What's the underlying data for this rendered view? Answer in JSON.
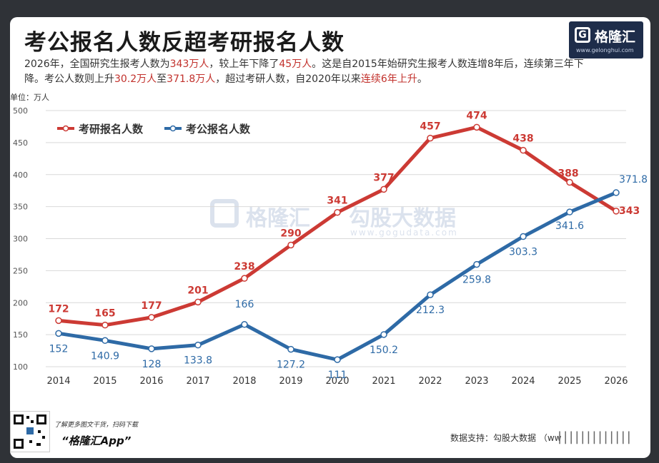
{
  "header": {
    "title": "考公报名人数反超考研报名人数",
    "subtitle_parts": [
      {
        "text": "2026年，全国研究生报考人数为",
        "hl": false
      },
      {
        "text": "343万人",
        "hl": true
      },
      {
        "text": "，较上年下降了",
        "hl": false
      },
      {
        "text": "45万人",
        "hl": true
      },
      {
        "text": "。这是自2015年始研究生报考人数连增8年后，连续第三年下降。考公人数则上升",
        "hl": false
      },
      {
        "text": "30.2万人",
        "hl": true
      },
      {
        "text": "至",
        "hl": false
      },
      {
        "text": "371.8万人",
        "hl": true
      },
      {
        "text": "，超过考研人数，自2020年以来",
        "hl": false
      },
      {
        "text": "连续6年上升",
        "hl": true
      },
      {
        "text": "。",
        "hl": false
      }
    ]
  },
  "logo": {
    "name": "格隆汇",
    "mark": "G",
    "url": "www.gelonghui.com"
  },
  "watermark": {
    "brand": "格隆汇",
    "partner": "勾股大数据",
    "url": "www.gogudata.com"
  },
  "footer": {
    "promo": "了解更多图文干货，扫码下载",
    "app": "“格隆汇App”",
    "source": "数据支持：勾股大数据 （ww",
    "overlay": "|||||||||||||"
  },
  "colors": {
    "kaoyan": "#cc3a34",
    "kaogong": "#2e6aa6",
    "grid": "#d9d9d9",
    "highlight": "#c2312c"
  },
  "chart_data": {
    "type": "line",
    "unit_label": "单位：万人",
    "categories": [
      "2014",
      "2015",
      "2016",
      "2017",
      "2018",
      "2019",
      "2020",
      "2021",
      "2022",
      "2023",
      "2024",
      "2025",
      "2026"
    ],
    "series": [
      {
        "name": "考研报名人数",
        "color": "#cc3a34",
        "values": [
          172,
          165,
          177,
          201,
          238,
          290,
          341,
          377,
          457,
          474,
          438,
          388,
          343
        ],
        "labels": [
          "172",
          "165",
          "177",
          "201",
          "238",
          "290",
          "341",
          "377",
          "457",
          "474",
          "438",
          "388",
          "343"
        ]
      },
      {
        "name": "考公报名人数",
        "color": "#2e6aa6",
        "values": [
          152,
          140.9,
          128,
          133.8,
          166,
          127.2,
          111,
          150.2,
          212.3,
          259.8,
          303.3,
          341.6,
          371.8
        ],
        "labels": [
          "152",
          "140.9",
          "128",
          "133.8",
          "166",
          "127.2",
          "111",
          "150.2",
          "212.3",
          "259.8",
          "303.3",
          "341.6",
          "371.8"
        ]
      }
    ],
    "yticks": [
      "100",
      "150",
      "200",
      "250",
      "300",
      "350",
      "400",
      "450",
      "500"
    ],
    "ylim": [
      100,
      500
    ],
    "grid": true,
    "legend": "top-left"
  }
}
